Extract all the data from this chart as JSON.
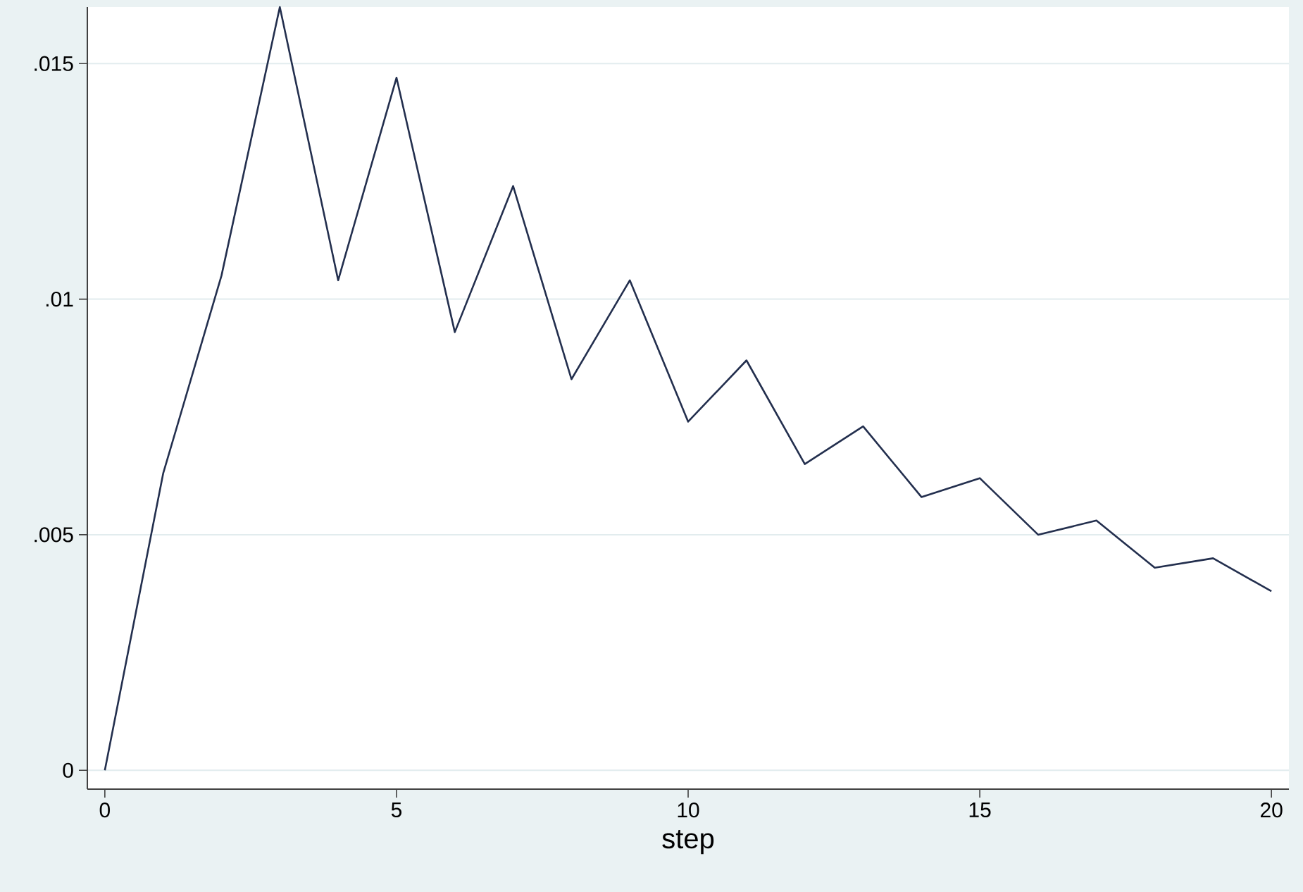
{
  "chart_data": {
    "type": "line",
    "xlabel": "step",
    "x": [
      0,
      1,
      2,
      3,
      4,
      5,
      6,
      7,
      8,
      9,
      10,
      11,
      12,
      13,
      14,
      15,
      16,
      17,
      18,
      19,
      20
    ],
    "series": [
      {
        "color": "#232f4e",
        "values": [
          0,
          0.0063,
          0.0105,
          0.0162,
          0.0104,
          0.0147,
          0.0093,
          0.0124,
          0.0083,
          0.0104,
          0.0074,
          0.0087,
          0.0065,
          0.0073,
          0.0058,
          0.0062,
          0.005,
          0.0053,
          0.0043,
          0.0045,
          0.0038
        ]
      }
    ],
    "xlim": [
      -0.3,
      20.3
    ],
    "ylim": [
      -0.0004,
      0.0162
    ],
    "xticks": [
      0,
      5,
      10,
      15,
      20
    ],
    "yticks": [
      0,
      {
        "value": 0.005,
        "label": ".005"
      },
      {
        "value": 0.01,
        "label": ".01"
      },
      {
        "value": 0.015,
        "label": ".015"
      }
    ],
    "grid": "y",
    "marker": "none",
    "line_style": "solid"
  }
}
